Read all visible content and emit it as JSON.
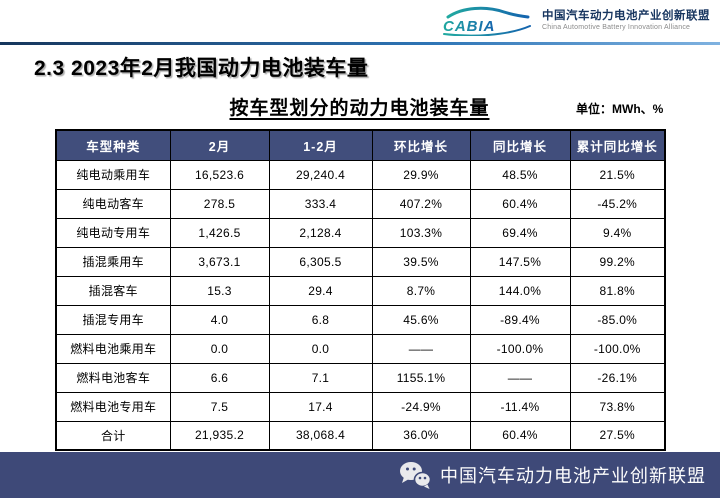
{
  "header": {
    "logo_text": "CABIA",
    "org_name_cn": "中国汽车动力电池产业创新联盟",
    "org_name_en": "China Automotive Battery Innovation Alliance"
  },
  "page_title": "2.3 2023年2月我国动力电池装车量",
  "chart_data": {
    "type": "table",
    "title": "按车型划分的动力电池装车量",
    "unit": "单位：MWh、%",
    "columns": [
      "车型种类",
      "2月",
      "1-2月",
      "环比增长",
      "同比增长",
      "累计同比增长"
    ],
    "rows": [
      [
        "纯电动乘用车",
        "16,523.6",
        "29,240.4",
        "29.9%",
        "48.5%",
        "21.5%"
      ],
      [
        "纯电动客车",
        "278.5",
        "333.4",
        "407.2%",
        "60.4%",
        "-45.2%"
      ],
      [
        "纯电动专用车",
        "1,426.5",
        "2,128.4",
        "103.3%",
        "69.4%",
        "9.4%"
      ],
      [
        "插混乘用车",
        "3,673.1",
        "6,305.5",
        "39.5%",
        "147.5%",
        "99.2%"
      ],
      [
        "插混客车",
        "15.3",
        "29.4",
        "8.7%",
        "144.0%",
        "81.8%"
      ],
      [
        "插混专用车",
        "4.0",
        "6.8",
        "45.6%",
        "-89.4%",
        "-85.0%"
      ],
      [
        "燃料电池乘用车",
        "0.0",
        "0.0",
        "——",
        "-100.0%",
        "-100.0%"
      ],
      [
        "燃料电池客车",
        "6.6",
        "7.1",
        "1155.1%",
        "——",
        "-26.1%"
      ],
      [
        "燃料电池专用车",
        "7.5",
        "17.4",
        "-24.9%",
        "-11.4%",
        "73.8%"
      ],
      [
        "合计",
        "21,935.2",
        "38,068.4",
        "36.0%",
        "60.4%",
        "27.5%"
      ]
    ]
  },
  "footer": {
    "text": "中国汽车动力电池产业创新联盟"
  },
  "colors": {
    "table_header_bg": "#414E7C",
    "footer_bg": "#3E4978",
    "accent_dark": "#16365C",
    "accent_mid": "#2E75B6",
    "accent_light": "#7FB2E0",
    "logo_teal": "#21A9A0",
    "logo_blue": "#1463AE"
  }
}
